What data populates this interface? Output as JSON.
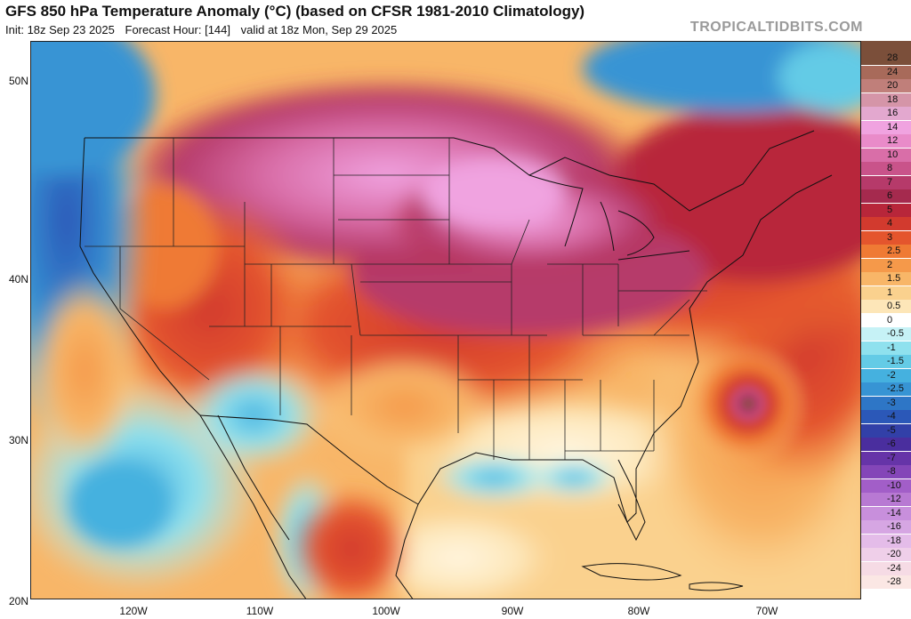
{
  "header": {
    "title": "GFS 850 hPa Temperature Anomaly (°C) (based on CFSR 1981-2010 Climatology)",
    "init": "Init: 18z Sep 23 2025",
    "forecast_hour": "Forecast Hour: [144]",
    "valid": "valid at 18z Mon, Sep 29 2025",
    "watermark": "TROPICALTIDBITS.COM"
  },
  "axes": {
    "lat_labels": [
      "50N",
      "40N",
      "30N",
      "20N"
    ],
    "lon_labels": [
      "120W",
      "110W",
      "100W",
      "90W",
      "80W",
      "70W"
    ]
  },
  "colorbar": {
    "levels": [
      {
        "label": "28",
        "color": "#7b4f3a"
      },
      {
        "label": "24",
        "color": "#a86a5a"
      },
      {
        "label": "20",
        "color": "#c07f7a"
      },
      {
        "label": "18",
        "color": "#d595a8"
      },
      {
        "label": "16",
        "color": "#e3a8cf"
      },
      {
        "label": "14",
        "color": "#f0a3e0"
      },
      {
        "label": "12",
        "color": "#e98bc9"
      },
      {
        "label": "10",
        "color": "#d96ea8"
      },
      {
        "label": "8",
        "color": "#c9538a"
      },
      {
        "label": "7",
        "color": "#b63a6a"
      },
      {
        "label": "6",
        "color": "#a52a4e"
      },
      {
        "label": "5",
        "color": "#b8263a"
      },
      {
        "label": "4",
        "color": "#d23a2e"
      },
      {
        "label": "3",
        "color": "#e4552d"
      },
      {
        "label": "2.5",
        "color": "#ef7a34"
      },
      {
        "label": "2",
        "color": "#f5994a"
      },
      {
        "label": "1.5",
        "color": "#f8b668"
      },
      {
        "label": "1",
        "color": "#fad18e"
      },
      {
        "label": "0.5",
        "color": "#fde6b8"
      },
      {
        "label": "0",
        "color": "#ffffff"
      },
      {
        "label": "-0.5",
        "color": "#c6f2f6"
      },
      {
        "label": "-1",
        "color": "#8fe1ee"
      },
      {
        "label": "-1.5",
        "color": "#64cbe6"
      },
      {
        "label": "-2",
        "color": "#45b1df"
      },
      {
        "label": "-2.5",
        "color": "#3794d4"
      },
      {
        "label": "-3",
        "color": "#2e76c6"
      },
      {
        "label": "-4",
        "color": "#2b58b8"
      },
      {
        "label": "-5",
        "color": "#3240a8"
      },
      {
        "label": "-6",
        "color": "#4a2e9e"
      },
      {
        "label": "-7",
        "color": "#6634a8"
      },
      {
        "label": "-8",
        "color": "#8446b8"
      },
      {
        "label": "-10",
        "color": "#a25ec8"
      },
      {
        "label": "-12",
        "color": "#b879d3"
      },
      {
        "label": "-14",
        "color": "#c88fdc"
      },
      {
        "label": "-16",
        "color": "#d6a6e3"
      },
      {
        "label": "-18",
        "color": "#e4bce9"
      },
      {
        "label": "-20",
        "color": "#efcfe9"
      },
      {
        "label": "-24",
        "color": "#f6dbe5"
      },
      {
        "label": "-28",
        "color": "#fbe7e4"
      }
    ]
  }
}
